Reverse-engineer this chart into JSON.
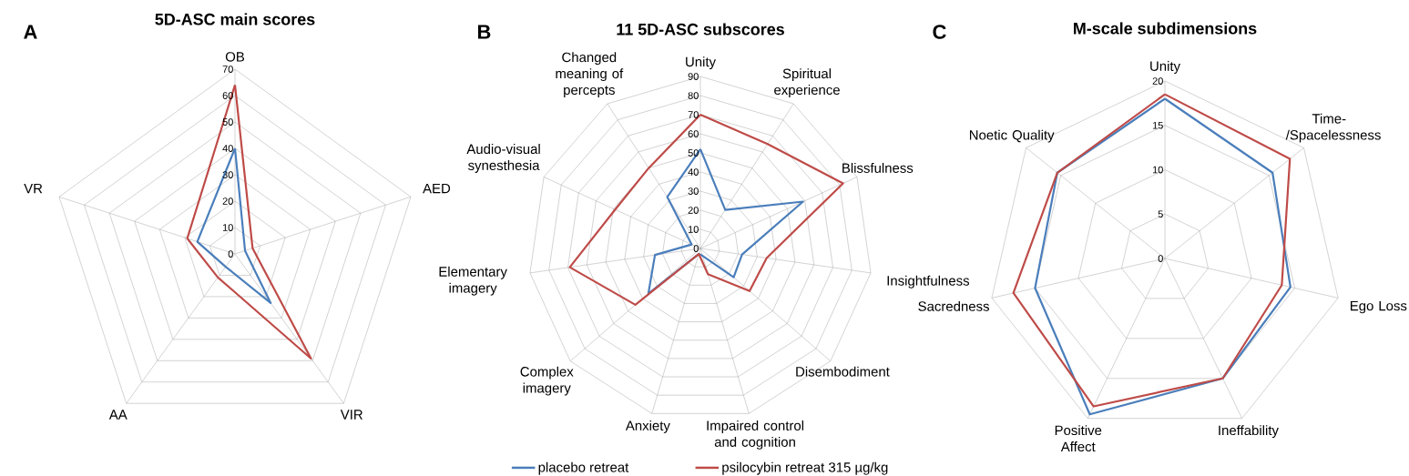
{
  "chart_data": [
    {
      "type": "radar",
      "title": "5D-ASC main scores",
      "annotations": [
        "A"
      ],
      "categories": [
        "OB",
        "AED",
        "VIR",
        "AA",
        "VR"
      ],
      "ylim": [
        0,
        70
      ],
      "yticks": [
        0,
        10,
        20,
        30,
        40,
        50,
        60,
        70
      ],
      "grid": true,
      "marker": "none",
      "series": [
        {
          "color": "#4a7ebb",
          "values": [
            40,
            4,
            23,
            6,
            15
          ]
        },
        {
          "color": "#be4b48",
          "values": [
            64,
            7,
            49,
            11,
            19
          ]
        }
      ]
    },
    {
      "type": "radar",
      "title": "11 5D-ASC subscores",
      "annotations": [
        "B"
      ],
      "categories": [
        "Unity",
        "Spiritual experience",
        "Blissfulness",
        "Insightfulness",
        "Disembodiment",
        "Impaired control and cognition",
        "Anxiety",
        "Complex imagery",
        "Elementary imagery",
        "Audio-visual synesthesia",
        "Changed meaning of percepts"
      ],
      "ylim": [
        0,
        90
      ],
      "yticks": [
        0,
        10,
        20,
        30,
        40,
        50,
        60,
        70,
        80,
        90
      ],
      "grid": true,
      "marker": "none",
      "legend": "bottom",
      "series": [
        {
          "name": "placebo retreat",
          "color": "#4a7ebb",
          "values": [
            52,
            24,
            59,
            22,
            23,
            4,
            3,
            36,
            24,
            5,
            32
          ]
        },
        {
          "name": "psilocybin retreat 315 µg/kg",
          "color": "#be4b48",
          "values": [
            70,
            65,
            82,
            35,
            34,
            14,
            3,
            45,
            69,
            49,
            50
          ]
        }
      ]
    },
    {
      "type": "radar",
      "title": "M-scale subdimensions",
      "annotations": [
        "C"
      ],
      "categories": [
        "Unity",
        "Time-/Spacelessness",
        "Ego Loss",
        "Ineffability",
        "Positive Affect",
        "Sacredness",
        "Noetic Quality"
      ],
      "ylim": [
        0,
        20
      ],
      "yticks": [
        0,
        5,
        10,
        15,
        20
      ],
      "grid": true,
      "marker": "none",
      "series": [
        {
          "color": "#4a7ebb",
          "values": [
            18,
            15.5,
            14.5,
            15,
            19.5,
            15,
            15.5
          ]
        },
        {
          "color": "#be4b48",
          "values": [
            18.5,
            18,
            13.5,
            15,
            18.5,
            17.5,
            15.5
          ]
        }
      ]
    }
  ]
}
